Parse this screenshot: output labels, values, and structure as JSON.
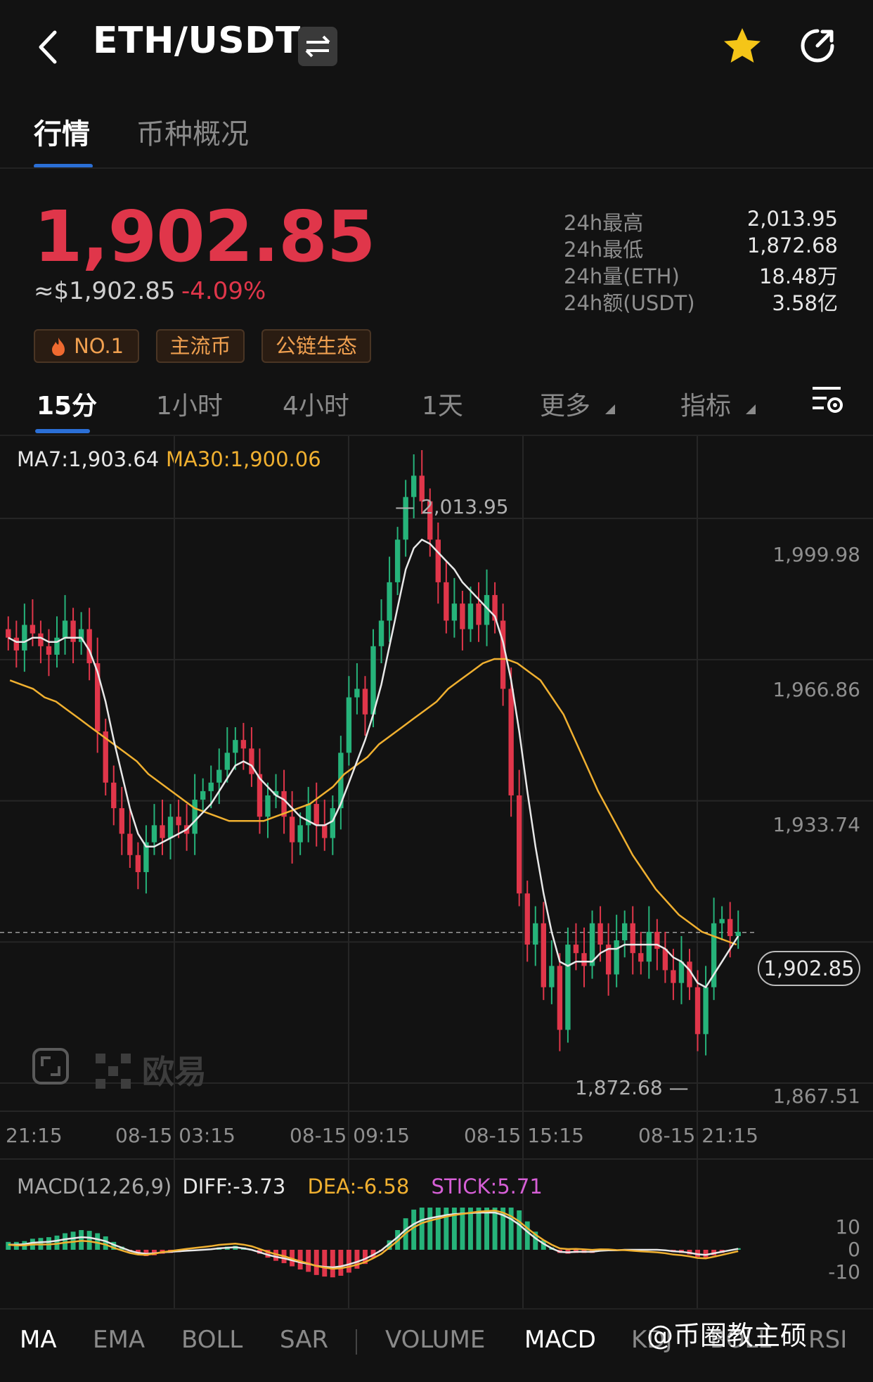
{
  "header": {
    "title": "ETH/USDT",
    "icons": [
      "chevron-left-icon",
      "swap-icon",
      "star-icon",
      "share-icon"
    ]
  },
  "tabs": [
    {
      "label": "行情",
      "active": true
    },
    {
      "label": "币种概况",
      "active": false
    }
  ],
  "price": {
    "last": "1,902.85",
    "usd": "≈$1,902.85",
    "change": "-4.09%",
    "color": "#e0364a"
  },
  "stats": [
    {
      "label": "24h最高",
      "value": "2,013.95"
    },
    {
      "label": "24h最低",
      "value": "1,872.68"
    },
    {
      "label": "24h量(ETH)",
      "value": "18.48万"
    },
    {
      "label": "24h额(USDT)",
      "value": "3.58亿"
    }
  ],
  "tags": [
    "NO.1",
    "主流币",
    "公链生态"
  ],
  "intervals": [
    {
      "label": "15分",
      "active": true
    },
    {
      "label": "1小时",
      "active": false
    },
    {
      "label": "4小时",
      "active": false
    },
    {
      "label": "1天",
      "active": false
    },
    {
      "label": "更多",
      "active": false
    },
    {
      "label": "指标",
      "active": false
    }
  ],
  "ma": {
    "ma7": "MA7:1,903.64",
    "ma30": "MA30:1,900.06",
    "ma7_color": "#e8e8e8",
    "ma30_color": "#f0b030"
  },
  "chart_data": {
    "type": "candlestick",
    "y_ticks": [
      "1,999.98",
      "1,966.86",
      "1,933.74",
      "1,867.51"
    ],
    "x_ticks": [
      "21:15",
      "08-15 03:15",
      "08-15 09:15",
      "08-15 15:15",
      "08-15 21:15"
    ],
    "high_label": "2,013.95",
    "low_label": "1,872.68",
    "current_price": "1,902.85",
    "ylim": [
      1867.51,
      2016
    ],
    "up_color": "#26b37a",
    "down_color": "#e0364a",
    "candles_close": [
      1972,
      1969,
      1975,
      1973,
      1970,
      1968,
      1972,
      1976,
      1971,
      1974,
      1966,
      1950,
      1938,
      1932,
      1926,
      1921,
      1917,
      1924,
      1928,
      1925,
      1930,
      1928,
      1926,
      1934,
      1936,
      1938,
      1941,
      1945,
      1948,
      1946,
      1940,
      1930,
      1935,
      1936,
      1930,
      1924,
      1928,
      1933,
      1928,
      1925,
      1932,
      1945,
      1958,
      1960,
      1954,
      1970,
      1976,
      1985,
      1995,
      2005,
      2010,
      2004,
      1995,
      1985,
      1976,
      1980,
      1974,
      1980,
      1975,
      1982,
      1976,
      1960,
      1935,
      1912,
      1900,
      1905,
      1890,
      1895,
      1880,
      1900,
      1898,
      1895,
      1905,
      1900,
      1893,
      1901,
      1905,
      1898,
      1896,
      1903,
      1899,
      1894,
      1891,
      1896,
      1890,
      1879,
      1890,
      1905,
      1906,
      1902,
      1903
    ],
    "ma7": [
      1972,
      1971,
      1971,
      1972,
      1972,
      1971,
      1971,
      1972,
      1972,
      1972,
      1969,
      1964,
      1957,
      1948,
      1940,
      1932,
      1926,
      1923,
      1923,
      1924,
      1925,
      1926,
      1927,
      1929,
      1931,
      1933,
      1936,
      1939,
      1942,
      1943,
      1942,
      1939,
      1937,
      1935,
      1934,
      1932,
      1930,
      1929,
      1928,
      1928,
      1929,
      1933,
      1938,
      1943,
      1948,
      1954,
      1961,
      1970,
      1979,
      1988,
      1993,
      1995,
      1994,
      1992,
      1990,
      1988,
      1985,
      1983,
      1981,
      1979,
      1977,
      1971,
      1962,
      1950,
      1936,
      1923,
      1912,
      1903,
      1896,
      1895,
      1896,
      1896,
      1896,
      1898,
      1899,
      1899,
      1900,
      1900,
      1900,
      1900,
      1900,
      1899,
      1897,
      1896,
      1894,
      1891,
      1890,
      1893,
      1896,
      1899,
      1902
    ],
    "ma30": [
      1962,
      1961,
      1960,
      1958,
      1957,
      1955,
      1953,
      1951,
      1949,
      1947,
      1945,
      1943,
      1940,
      1938,
      1936,
      1934,
      1932,
      1931,
      1930,
      1929,
      1929,
      1929,
      1929,
      1930,
      1931,
      1932,
      1933,
      1935,
      1937,
      1940,
      1942,
      1944,
      1947,
      1949,
      1951,
      1953,
      1955,
      1957,
      1960,
      1962,
      1964,
      1966,
      1967,
      1967,
      1966,
      1964,
      1962,
      1958,
      1954,
      1948,
      1942,
      1936,
      1931,
      1926,
      1921,
      1917,
      1913,
      1910,
      1907,
      1905,
      1903,
      1902,
      1901,
      1900
    ],
    "macd": {
      "label": "MACD(12,26,9)",
      "diff": "DIFF:-3.73",
      "dea": "DEA:-6.58",
      "stick": "STICK:5.71",
      "diff_color": "#e8e8e8",
      "dea_color": "#f0b030",
      "stick_color": "#d65fd6",
      "y_ticks": [
        "10",
        "0",
        "-10"
      ]
    }
  },
  "indicators": [
    {
      "label": "MA",
      "active": true
    },
    {
      "label": "EMA",
      "active": false
    },
    {
      "label": "BOLL",
      "active": false
    },
    {
      "label": "SAR",
      "active": false
    },
    {
      "label": "VOLUME",
      "active": false
    },
    {
      "label": "MACD",
      "active": true
    },
    {
      "label": "KDJ",
      "active": false
    },
    {
      "label": "BOLL",
      "active": false
    },
    {
      "label": "RSI",
      "active": false
    }
  ],
  "watermark": "@币圈教主硕",
  "logo_text": "欧易"
}
